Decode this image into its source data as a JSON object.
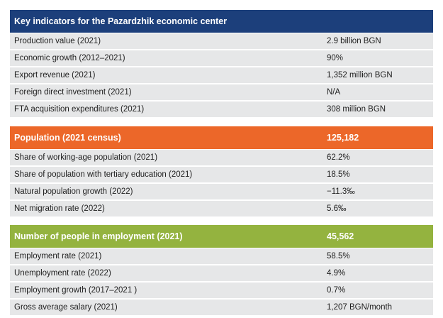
{
  "colors": {
    "key_header": "#1c3f7b",
    "population_header": "#ec6729",
    "employment_header": "#94b33f",
    "row_background": "#e6e7e8"
  },
  "sections": [
    {
      "title": "Key indicators for the Pazardzhik economic center",
      "value": "",
      "rows": [
        {
          "label": "Production value (2021)",
          "value": "2.9 billion BGN"
        },
        {
          "label": "Economic growth (2012–2021)",
          "value": "90%"
        },
        {
          "label": "Export revenue (2021)",
          "value": "1,352 million BGN"
        },
        {
          "label": "Foreign direct investment (2021)",
          "value": "N/A"
        },
        {
          "label": "FTA acquisition expenditures (2021)",
          "value": "308 million BGN"
        }
      ]
    },
    {
      "title": "Population (2021 census)",
      "value": "125,182",
      "rows": [
        {
          "label": "Share of working-age population (2021)",
          "value": "62.2%"
        },
        {
          "label": "Share of population with tertiary education (2021)",
          "value": "18.5%"
        },
        {
          "label": "Natural population growth (2022)",
          "value": "−11.3‰"
        },
        {
          "label": "Net migration rate (2022)",
          "value": "5.6‰"
        }
      ]
    },
    {
      "title": "Number of people in employment (2021)",
      "value": "45,562",
      "rows": [
        {
          "label": "Employment rate (2021)",
          "value": "58.5%"
        },
        {
          "label": "Unemployment rate (2022)",
          "value": "4.9%"
        },
        {
          "label": "Employment growth (2017–2021 )",
          "value": "0.7%"
        },
        {
          "label": "Gross average salary (2021)",
          "value": "1,207 BGN/month"
        }
      ]
    }
  ]
}
